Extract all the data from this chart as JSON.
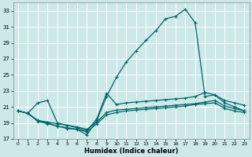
{
  "xlabel": "Humidex (Indice chaleur)",
  "xlim": [
    -0.5,
    23.5
  ],
  "ylim": [
    17,
    34
  ],
  "yticks": [
    17,
    19,
    21,
    23,
    25,
    27,
    29,
    31,
    33
  ],
  "xticks": [
    0,
    1,
    2,
    3,
    4,
    5,
    6,
    7,
    8,
    9,
    10,
    11,
    12,
    13,
    14,
    15,
    16,
    17,
    18,
    19,
    20,
    21,
    22,
    23
  ],
  "bg_color": "#cce8e8",
  "grid_color": "#ffffff",
  "line_color": "#006666",
  "line1_x": [
    0,
    1,
    2,
    3,
    4,
    5,
    6,
    7,
    8,
    9,
    10,
    11,
    12,
    13,
    14,
    15,
    16,
    17,
    18,
    19,
    20,
    21,
    22,
    23
  ],
  "line1_y": [
    20.5,
    20.2,
    19.3,
    19.0,
    18.6,
    18.3,
    18.2,
    17.5,
    19.3,
    22.3,
    24.7,
    26.6,
    28.0,
    29.3,
    30.5,
    32.0,
    32.3,
    33.2,
    31.5,
    22.3,
    22.5,
    21.5,
    21.0,
    20.5
  ],
  "line2_x": [
    0,
    1,
    2,
    3,
    4,
    5,
    6,
    7,
    8,
    9,
    10,
    11,
    12,
    13,
    14,
    15,
    16,
    17,
    18,
    19,
    20,
    21,
    22,
    23
  ],
  "line2_y": [
    20.5,
    20.2,
    21.5,
    21.8,
    19.0,
    18.7,
    18.4,
    18.0,
    19.5,
    22.7,
    21.3,
    21.5,
    21.6,
    21.7,
    21.8,
    21.9,
    22.0,
    22.1,
    22.3,
    22.8,
    22.5,
    21.8,
    21.5,
    21.2
  ],
  "line3_x": [
    0,
    1,
    2,
    3,
    4,
    5,
    6,
    7,
    8,
    9,
    10,
    11,
    12,
    13,
    14,
    15,
    16,
    17,
    18,
    19,
    20,
    21,
    22,
    23
  ],
  "line3_y": [
    20.5,
    20.2,
    19.3,
    19.1,
    18.9,
    18.7,
    18.5,
    18.2,
    19.1,
    20.3,
    20.6,
    20.7,
    20.8,
    20.9,
    21.0,
    21.1,
    21.2,
    21.3,
    21.4,
    21.6,
    21.8,
    21.1,
    20.8,
    20.5
  ],
  "line4_x": [
    0,
    1,
    2,
    3,
    4,
    5,
    6,
    7,
    8,
    9,
    10,
    11,
    12,
    13,
    14,
    15,
    16,
    17,
    18,
    19,
    20,
    21,
    22,
    23
  ],
  "line4_y": [
    20.5,
    20.2,
    19.2,
    18.9,
    18.6,
    18.4,
    18.2,
    17.9,
    18.9,
    20.0,
    20.3,
    20.5,
    20.6,
    20.7,
    20.8,
    20.9,
    21.0,
    21.1,
    21.3,
    21.4,
    21.5,
    20.8,
    20.5,
    20.3
  ]
}
